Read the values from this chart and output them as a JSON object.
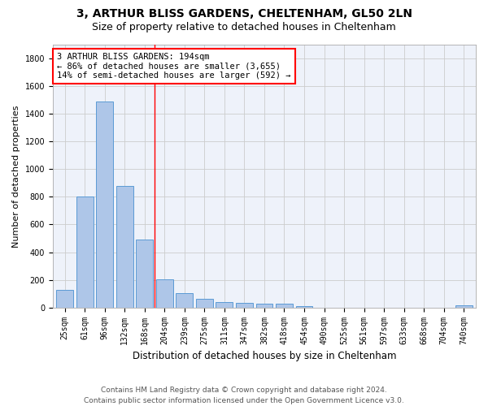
{
  "title1": "3, ARTHUR BLISS GARDENS, CHELTENHAM, GL50 2LN",
  "title2": "Size of property relative to detached houses in Cheltenham",
  "xlabel": "Distribution of detached houses by size in Cheltenham",
  "ylabel": "Number of detached properties",
  "categories": [
    "25sqm",
    "61sqm",
    "96sqm",
    "132sqm",
    "168sqm",
    "204sqm",
    "239sqm",
    "275sqm",
    "311sqm",
    "347sqm",
    "382sqm",
    "418sqm",
    "454sqm",
    "490sqm",
    "525sqm",
    "561sqm",
    "597sqm",
    "633sqm",
    "668sqm",
    "704sqm",
    "740sqm"
  ],
  "values": [
    125,
    800,
    1490,
    880,
    490,
    205,
    105,
    65,
    40,
    35,
    30,
    25,
    10,
    0,
    0,
    0,
    0,
    0,
    0,
    0,
    15
  ],
  "bar_color": "#aec6e8",
  "bar_edge_color": "#5b9bd5",
  "vline_x": 4.5,
  "vline_color": "red",
  "annotation_text": "3 ARTHUR BLISS GARDENS: 194sqm\n← 86% of detached houses are smaller (3,655)\n14% of semi-detached houses are larger (592) →",
  "annotation_box_color": "white",
  "annotation_box_edge": "red",
  "ylim": [
    0,
    1900
  ],
  "yticks": [
    0,
    200,
    400,
    600,
    800,
    1000,
    1200,
    1400,
    1600,
    1800
  ],
  "grid_color": "#cccccc",
  "bg_color": "#eef2fa",
  "footer": "Contains HM Land Registry data © Crown copyright and database right 2024.\nContains public sector information licensed under the Open Government Licence v3.0.",
  "title1_fontsize": 10,
  "title2_fontsize": 9,
  "xlabel_fontsize": 8.5,
  "ylabel_fontsize": 8,
  "tick_fontsize": 7,
  "annotation_fontsize": 7.5,
  "footer_fontsize": 6.5
}
